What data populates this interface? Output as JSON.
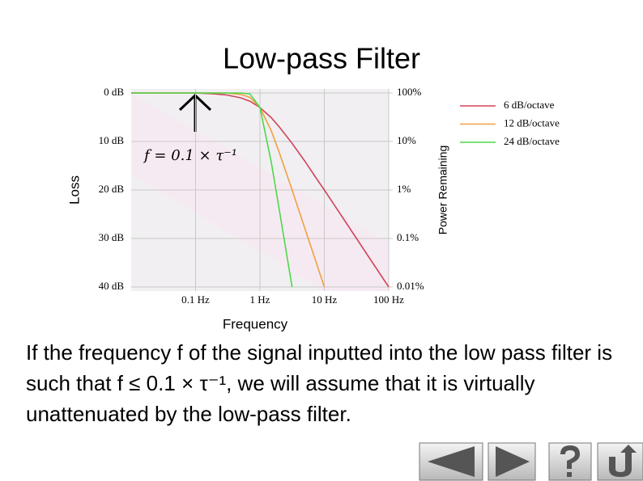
{
  "title": "Low-pass Filter",
  "chart_data": {
    "type": "line",
    "x_label": "Frequency",
    "y_label": "Loss",
    "y2_label": "Power Remaining",
    "annotation": "f = 0.1 × τ⁻¹",
    "x_scale": "log",
    "y2_scale": "log",
    "grid": true,
    "legend": "right",
    "xlim": [
      0.01,
      100
    ],
    "xticks": [
      {
        "value": 0.1,
        "label": "0.1 Hz"
      },
      {
        "value": 1,
        "label": "1 Hz"
      },
      {
        "value": 10,
        "label": "10 Hz"
      },
      {
        "value": 100,
        "label": "100 Hz"
      }
    ],
    "ylim": [
      40,
      0
    ],
    "yticks": [
      {
        "value": 0,
        "label": "0 dB"
      },
      {
        "value": 10,
        "label": "10 dB"
      },
      {
        "value": 20,
        "label": "20 dB"
      },
      {
        "value": 30,
        "label": "30 dB"
      },
      {
        "value": 40,
        "label": "40 dB"
      }
    ],
    "y2lim": [
      0.01,
      100
    ],
    "y2ticks": [
      {
        "value": 100,
        "label": "100%"
      },
      {
        "value": 10,
        "label": "10%"
      },
      {
        "value": 1,
        "label": "1%"
      },
      {
        "value": 0.1,
        "label": "0.1%"
      },
      {
        "value": 0.01,
        "label": "0.01%"
      }
    ],
    "x": [
      0.01,
      0.1,
      0.2,
      0.3,
      0.5,
      0.7,
      1,
      1.5,
      2,
      3,
      3.16,
      5,
      7,
      10,
      20,
      50,
      100
    ],
    "series": [
      {
        "name": "6 dB/octave",
        "color": "#d0465a",
        "values": [
          0,
          0,
          0.2,
          0.4,
          1,
          1.7,
          3,
          5.1,
          7,
          10,
          10.4,
          14.1,
          17,
          20,
          26,
          34,
          40
        ]
      },
      {
        "name": "12 dB/octave",
        "color": "#f0a040",
        "values": [
          0,
          0,
          0,
          0,
          0.3,
          0.9,
          3,
          7.8,
          12.3,
          19.1,
          20,
          28,
          33.8,
          40,
          null,
          null,
          null
        ]
      },
      {
        "name": "24 dB/octave",
        "color": "#4cd84c",
        "values": [
          0,
          0,
          0,
          0,
          0,
          0.2,
          3,
          14.3,
          24.1,
          38.2,
          40,
          null,
          null,
          null,
          null,
          null,
          null
        ]
      }
    ]
  },
  "body": "If the frequency f of the signal inputted into the low pass filter is such that f ≤ 0.1 × τ⁻¹, we will assume that it is virtually unattenuated by the low-pass filter."
}
